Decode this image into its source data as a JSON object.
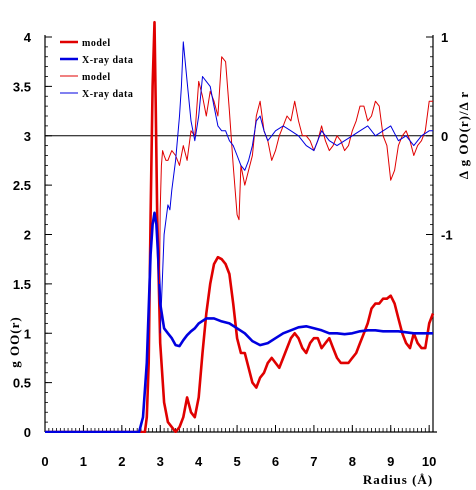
{
  "chart_data": {
    "type": "line",
    "xlabel": "Radius (Å)",
    "ylabel_left": "g OO(r)",
    "ylabel_right": "Δ g OO(r)/Δ r",
    "xlim": [
      0,
      10.1
    ],
    "ylim_left": [
      0,
      4
    ],
    "ylim_right": [
      -2,
      1
    ],
    "x_ticks": [
      "0",
      "1",
      "2",
      "3",
      "4",
      "5",
      "6",
      "7",
      "8",
      "9",
      "10"
    ],
    "y_ticks_left": [
      "0",
      "0.5",
      "1",
      "1.5",
      "2",
      "2.5",
      "3",
      "3.5",
      "4"
    ],
    "y_ticks_right": [
      "-1",
      "0",
      "1"
    ],
    "right_axis_zero_line": 0,
    "grid": false,
    "legend_position": "top-left",
    "legend": [
      {
        "label": "model",
        "color": "#e00000",
        "weight": "thick"
      },
      {
        "label": "X-ray data",
        "color": "#0000e0",
        "weight": "thick"
      },
      {
        "label": "model",
        "color": "#e00000",
        "weight": "thin"
      },
      {
        "label": "X-ray data",
        "color": "#0000e0",
        "weight": "thin"
      }
    ],
    "series": [
      {
        "name": "model",
        "axis": "left",
        "color": "#e00000",
        "weight": "thick",
        "x": [
          0,
          2.6,
          2.65,
          2.7,
          2.75,
          2.8,
          2.85,
          2.88,
          2.92,
          3.0,
          3.1,
          3.2,
          3.3,
          3.4,
          3.5,
          3.6,
          3.7,
          3.8,
          3.9,
          4.0,
          4.1,
          4.2,
          4.3,
          4.4,
          4.5,
          4.6,
          4.7,
          4.8,
          4.9,
          5.0,
          5.1,
          5.2,
          5.3,
          5.4,
          5.5,
          5.6,
          5.7,
          5.8,
          5.9,
          6.0,
          6.1,
          6.2,
          6.3,
          6.4,
          6.5,
          6.6,
          6.7,
          6.8,
          6.9,
          7.0,
          7.1,
          7.2,
          7.3,
          7.4,
          7.5,
          7.6,
          7.7,
          7.8,
          7.9,
          8.0,
          8.1,
          8.2,
          8.3,
          8.4,
          8.5,
          8.6,
          8.7,
          8.8,
          8.9,
          9.0,
          9.1,
          9.2,
          9.3,
          9.4,
          9.5,
          9.6,
          9.7,
          9.8,
          9.9,
          10.0,
          10.1
        ],
        "y": [
          0,
          0,
          0.15,
          0.7,
          2.2,
          3.5,
          4.15,
          3.4,
          2.2,
          0.9,
          0.3,
          0.1,
          0.05,
          0.0,
          0.05,
          0.15,
          0.35,
          0.2,
          0.15,
          0.35,
          0.8,
          1.2,
          1.5,
          1.7,
          1.77,
          1.75,
          1.7,
          1.6,
          1.3,
          0.95,
          0.8,
          0.8,
          0.65,
          0.5,
          0.45,
          0.55,
          0.6,
          0.7,
          0.75,
          0.7,
          0.65,
          0.75,
          0.85,
          0.95,
          1.0,
          0.95,
          0.85,
          0.8,
          0.9,
          0.95,
          0.95,
          0.85,
          0.9,
          0.95,
          0.85,
          0.75,
          0.7,
          0.7,
          0.7,
          0.75,
          0.8,
          0.9,
          1.0,
          1.1,
          1.25,
          1.3,
          1.3,
          1.35,
          1.35,
          1.38,
          1.3,
          1.15,
          1.0,
          0.9,
          0.85,
          1.0,
          0.9,
          0.85,
          0.85,
          1.1,
          1.2
        ]
      },
      {
        "name": "X-ray data",
        "axis": "left",
        "color": "#0000e0",
        "weight": "thick",
        "x": [
          0,
          2.45,
          2.55,
          2.65,
          2.75,
          2.8,
          2.85,
          2.9,
          2.95,
          3.0,
          3.1,
          3.2,
          3.3,
          3.4,
          3.5,
          3.6,
          3.7,
          3.8,
          3.9,
          4.0,
          4.2,
          4.4,
          4.6,
          4.8,
          5.0,
          5.2,
          5.4,
          5.6,
          5.8,
          6.0,
          6.2,
          6.4,
          6.6,
          6.8,
          7.0,
          7.2,
          7.4,
          7.6,
          7.8,
          8.0,
          8.2,
          8.4,
          8.6,
          8.8,
          9.0,
          9.2,
          9.4,
          9.6,
          9.8,
          10.0,
          10.1
        ],
        "y": [
          0,
          0,
          0.15,
          0.7,
          1.8,
          2.1,
          2.22,
          2.1,
          1.75,
          1.3,
          1.05,
          1.0,
          0.95,
          0.88,
          0.87,
          0.93,
          0.98,
          1.02,
          1.05,
          1.1,
          1.15,
          1.15,
          1.12,
          1.1,
          1.05,
          1.0,
          0.92,
          0.88,
          0.9,
          0.95,
          1.0,
          1.03,
          1.06,
          1.07,
          1.05,
          1.03,
          1.0,
          1.0,
          0.99,
          1.0,
          1.02,
          1.03,
          1.03,
          1.02,
          1.02,
          1.02,
          1.01,
          1.0,
          1.0,
          1.0,
          1.0
        ]
      },
      {
        "name": "model",
        "axis": "right",
        "color": "#e00000",
        "weight": "thin",
        "x": [
          2.98,
          3.0,
          3.03,
          3.06,
          3.1,
          3.15,
          3.2,
          3.3,
          3.4,
          3.5,
          3.6,
          3.7,
          3.8,
          3.9,
          4.0,
          4.1,
          4.2,
          4.3,
          4.4,
          4.5,
          4.6,
          4.7,
          4.8,
          4.9,
          5.0,
          5.05,
          5.1,
          5.2,
          5.3,
          5.4,
          5.5,
          5.6,
          5.7,
          5.8,
          5.9,
          6.0,
          6.1,
          6.2,
          6.3,
          6.4,
          6.5,
          6.6,
          6.7,
          6.8,
          6.9,
          7.0,
          7.1,
          7.2,
          7.3,
          7.4,
          7.5,
          7.6,
          7.7,
          7.8,
          7.9,
          8.0,
          8.1,
          8.2,
          8.3,
          8.4,
          8.5,
          8.6,
          8.7,
          8.8,
          8.9,
          9.0,
          9.1,
          9.2,
          9.3,
          9.4,
          9.5,
          9.6,
          9.7,
          9.8,
          9.9,
          10.0,
          10.1
        ],
        "y": [
          -1.5,
          -0.75,
          -0.3,
          -0.15,
          -0.2,
          -0.25,
          -0.25,
          -0.15,
          -0.2,
          -0.3,
          -0.1,
          -0.25,
          0.05,
          0.0,
          0.55,
          0.4,
          0.2,
          0.45,
          0.35,
          0.2,
          0.8,
          0.75,
          0.25,
          -0.3,
          -0.8,
          -0.85,
          -0.3,
          -0.5,
          -0.35,
          -0.2,
          0.2,
          0.35,
          0.05,
          -0.05,
          -0.25,
          -0.15,
          0.0,
          0.1,
          0.2,
          0.15,
          0.35,
          0.15,
          0.0,
          0.0,
          -0.05,
          -0.15,
          -0.05,
          0.1,
          -0.05,
          -0.15,
          -0.1,
          0.0,
          -0.05,
          -0.15,
          -0.1,
          0.05,
          0.15,
          0.3,
          0.3,
          0.15,
          0.2,
          0.35,
          0.3,
          0.0,
          -0.1,
          -0.45,
          -0.35,
          -0.1,
          0.0,
          0.05,
          -0.05,
          -0.2,
          -0.1,
          -0.05,
          0.05,
          0.35,
          0.35
        ]
      },
      {
        "name": "X-ray data",
        "axis": "right",
        "color": "#0000e0",
        "weight": "thin",
        "x": [
          3.0,
          3.05,
          3.1,
          3.15,
          3.2,
          3.25,
          3.3,
          3.4,
          3.5,
          3.55,
          3.6,
          3.7,
          3.8,
          3.9,
          4.0,
          4.1,
          4.2,
          4.3,
          4.4,
          4.5,
          4.6,
          4.7,
          4.8,
          4.9,
          5.0,
          5.1,
          5.2,
          5.3,
          5.4,
          5.5,
          5.6,
          5.7,
          5.8,
          5.9,
          6.0,
          6.2,
          6.4,
          6.6,
          6.8,
          7.0,
          7.2,
          7.4,
          7.6,
          7.8,
          8.0,
          8.2,
          8.4,
          8.6,
          8.8,
          9.0,
          9.2,
          9.4,
          9.6,
          9.8,
          10.0,
          10.1
        ],
        "y": [
          -2.0,
          -1.5,
          -1.0,
          -0.85,
          -0.7,
          -0.75,
          -0.55,
          -0.25,
          0.2,
          0.5,
          0.95,
          0.55,
          0.15,
          -0.05,
          0.2,
          0.6,
          0.55,
          0.5,
          0.3,
          0.1,
          0.05,
          0.05,
          -0.05,
          -0.1,
          -0.2,
          -0.3,
          -0.35,
          -0.25,
          -0.1,
          0.15,
          0.2,
          0.05,
          -0.05,
          0.0,
          0.05,
          0.1,
          0.05,
          0.0,
          -0.1,
          -0.15,
          0.05,
          -0.05,
          -0.1,
          -0.05,
          0.0,
          0.05,
          0.1,
          0.0,
          0.05,
          0.1,
          -0.05,
          0.0,
          -0.1,
          0.0,
          0.05,
          0.05
        ]
      }
    ]
  }
}
